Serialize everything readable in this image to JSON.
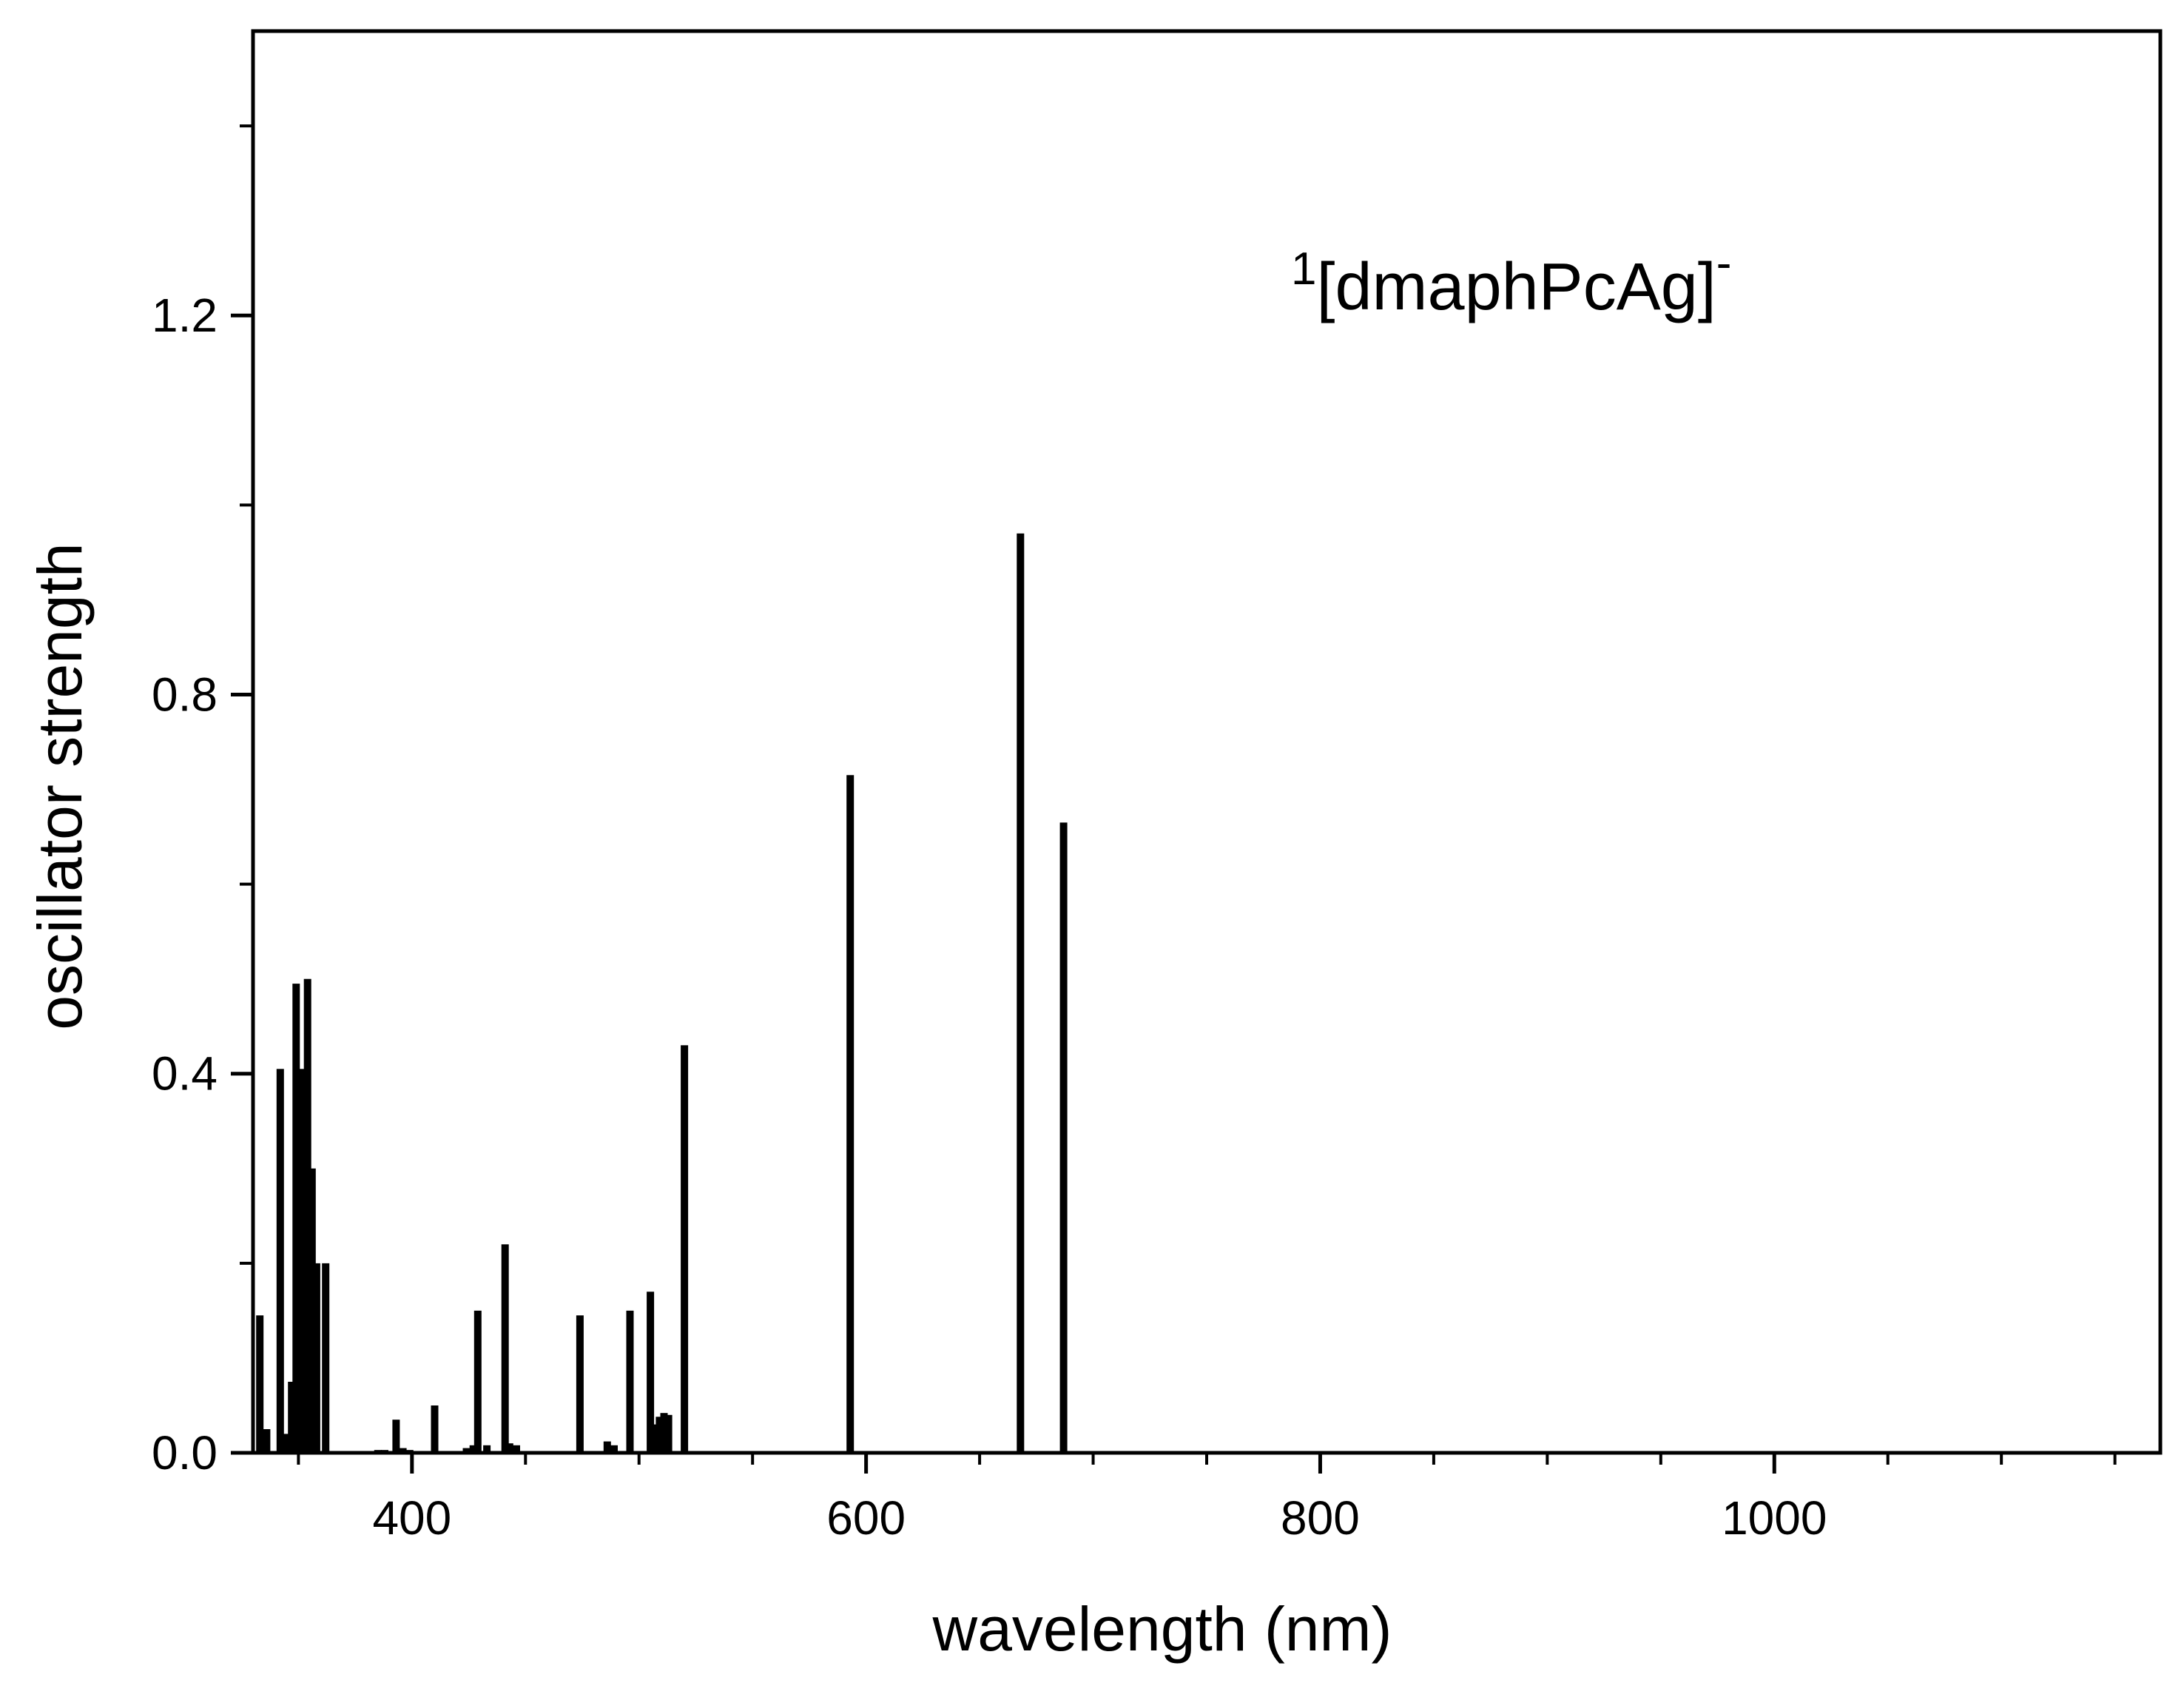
{
  "chart_data": {
    "type": "bar",
    "title": "",
    "xlabel": "wavelength (nm)",
    "ylabel": "oscillator strength",
    "xlim": [
      330,
      1170
    ],
    "ylim": [
      0.0,
      1.5
    ],
    "x_ticks_major": [
      400,
      600,
      800,
      1000
    ],
    "x_tick_labels": [
      "400",
      "600",
      "800",
      "1000"
    ],
    "x_ticks_minor": [
      350,
      450,
      500,
      550,
      650,
      700,
      750,
      850,
      900,
      950,
      1050,
      1100,
      1150
    ],
    "y_ticks_major": [
      0.0,
      0.4,
      0.8,
      1.2
    ],
    "y_tick_labels": [
      "0.0",
      "0.4",
      "0.8",
      "1.2"
    ],
    "y_ticks_minor": [
      0.2,
      0.6,
      1.0,
      1.4
    ],
    "grid": false,
    "legend": "none",
    "annotation": {
      "prefix": "1",
      "main": "[dmaphPcAg]",
      "suffix": "-"
    },
    "bar_color": "#000000",
    "series": [
      {
        "x": [
          333,
          336,
          342,
          345,
          347,
          349,
          352,
          354,
          356,
          358,
          362,
          385,
          388,
          393,
          396,
          399,
          410,
          424,
          427,
          429,
          433,
          441,
          443,
          446,
          474,
          486,
          489,
          496,
          505,
          507,
          509,
          511,
          513,
          520,
          593,
          668,
          687
        ],
        "values": [
          0.145,
          0.025,
          0.405,
          0.02,
          0.075,
          0.495,
          0.405,
          0.5,
          0.3,
          0.2,
          0.2,
          0.003,
          0.003,
          0.035,
          0.005,
          0.003,
          0.05,
          0.005,
          0.008,
          0.15,
          0.008,
          0.22,
          0.01,
          0.008,
          0.145,
          0.012,
          0.008,
          0.15,
          0.17,
          0.03,
          0.038,
          0.042,
          0.04,
          0.43,
          0.715,
          0.97,
          0.665
        ]
      }
    ]
  }
}
